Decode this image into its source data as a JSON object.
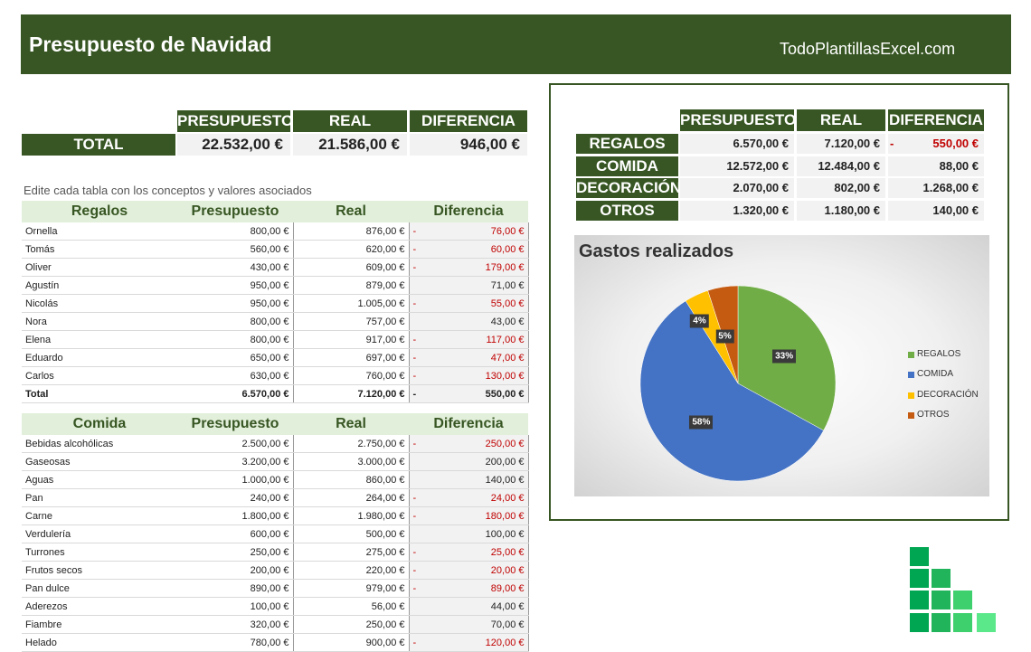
{
  "header": {
    "title": "Presupuesto de Navidad",
    "site": "TodoPlantillasExcel.com"
  },
  "columns": {
    "presupuesto": "PRESUPUESTO",
    "real": "REAL",
    "diferencia": "DIFERENCIA"
  },
  "total": {
    "label": "TOTAL",
    "presupuesto": "22.532,00 €",
    "real": "21.586,00 €",
    "diferencia": "946,00 €"
  },
  "note": "Edite cada tabla con los conceptos y valores asociados",
  "regalos": {
    "headers": [
      "Regalos",
      "Presupuesto",
      "Real",
      "Diferencia"
    ],
    "rows": [
      [
        "Ornella",
        "800,00 €",
        "876,00 €",
        "76,00 €",
        true
      ],
      [
        "Tomás",
        "560,00 €",
        "620,00 €",
        "60,00 €",
        true
      ],
      [
        "Oliver",
        "430,00 €",
        "609,00 €",
        "179,00 €",
        true
      ],
      [
        "Agustín",
        "950,00 €",
        "879,00 €",
        "71,00 €",
        false
      ],
      [
        "Nicolás",
        "950,00 €",
        "1.005,00 €",
        "55,00 €",
        true
      ],
      [
        "Nora",
        "800,00 €",
        "757,00 €",
        "43,00 €",
        false
      ],
      [
        "Elena",
        "800,00 €",
        "917,00 €",
        "117,00 €",
        true
      ],
      [
        "Eduardo",
        "650,00 €",
        "697,00 €",
        "47,00 €",
        true
      ],
      [
        "Carlos",
        "630,00 €",
        "760,00 €",
        "130,00 €",
        true
      ]
    ],
    "total": [
      "Total",
      "6.570,00 €",
      "7.120,00 €",
      "550,00 €",
      true
    ]
  },
  "comida": {
    "headers": [
      "Comida",
      "Presupuesto",
      "Real",
      "Diferencia"
    ],
    "rows": [
      [
        "Bebidas alcohólicas",
        "2.500,00 €",
        "2.750,00 €",
        "250,00 €",
        true
      ],
      [
        "Gaseosas",
        "3.200,00 €",
        "3.000,00 €",
        "200,00 €",
        false
      ],
      [
        "Aguas",
        "1.000,00 €",
        "860,00 €",
        "140,00 €",
        false
      ],
      [
        "Pan",
        "240,00 €",
        "264,00 €",
        "24,00 €",
        true
      ],
      [
        "Carne",
        "1.800,00 €",
        "1.980,00 €",
        "180,00 €",
        true
      ],
      [
        "Verdulería",
        "600,00 €",
        "500,00 €",
        "100,00 €",
        false
      ],
      [
        "Turrones",
        "250,00 €",
        "275,00 €",
        "25,00 €",
        true
      ],
      [
        "Frutos secos",
        "200,00 €",
        "220,00 €",
        "20,00 €",
        true
      ],
      [
        "Pan dulce",
        "890,00 €",
        "979,00 €",
        "89,00 €",
        true
      ],
      [
        "Aderezos",
        "100,00 €",
        "56,00 €",
        "44,00 €",
        false
      ],
      [
        "Fiambre",
        "320,00 €",
        "250,00 €",
        "70,00 €",
        false
      ],
      [
        "Helado",
        "780,00 €",
        "900,00 €",
        "120,00 €",
        true
      ]
    ]
  },
  "summary": {
    "rows": [
      {
        "label": "REGALOS",
        "presupuesto": "6.570,00 €",
        "real": "7.120,00 €",
        "diferencia": "550,00 €",
        "negative": true
      },
      {
        "label": "COMIDA",
        "presupuesto": "12.572,00 €",
        "real": "12.484,00 €",
        "diferencia": "88,00 €",
        "negative": false
      },
      {
        "label": "DECORACIÓN",
        "presupuesto": "2.070,00 €",
        "real": "802,00 €",
        "diferencia": "1.268,00 €",
        "negative": false
      },
      {
        "label": "OTROS",
        "presupuesto": "1.320,00 €",
        "real": "1.180,00 €",
        "diferencia": "140,00 €",
        "negative": false
      }
    ]
  },
  "chart_data": {
    "type": "pie",
    "title": "Gastos realizados",
    "categories": [
      "REGALOS",
      "COMIDA",
      "DECORACIÓN",
      "OTROS"
    ],
    "values": [
      33,
      58,
      4,
      5
    ],
    "labels": [
      "33%",
      "58%",
      "4%",
      "5%"
    ],
    "colors": [
      "#70ad47",
      "#4472c4",
      "#ffc000",
      "#c55a11"
    ],
    "legend": "right"
  },
  "colors": {
    "brand": "#375623",
    "negative": "#c00000"
  }
}
